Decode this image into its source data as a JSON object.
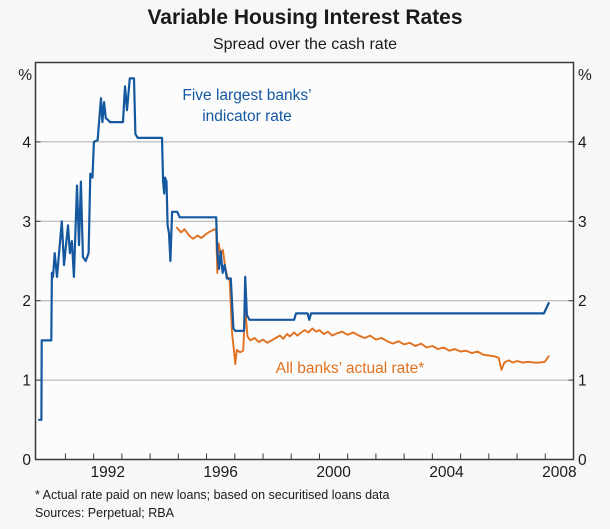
{
  "header": {
    "title": "Variable Housing Interest Rates",
    "subtitle": "Spread over the cash rate"
  },
  "footnotes": {
    "asterisk": "* Actual rate paid on new loans; based on securitised loans data",
    "sources": "Sources: Perpetual; RBA"
  },
  "annotations": {
    "blue_label_line1": "Five largest banks’",
    "blue_label_line2": "indicator rate",
    "orange_label": "All banks’ actual rate*"
  },
  "chart_data": {
    "type": "line",
    "title": "Variable Housing Interest Rates",
    "subtitle": "Spread over the cash rate",
    "grid": "horizontal-on",
    "legend_position": "inline-annotations",
    "x_axis": {
      "range": [
        1989.94,
        2009.0
      ],
      "tick_start_year": 1991,
      "tick_end_year": 2008,
      "tick_interval": 1,
      "labels": [
        {
          "year": 1992.5,
          "text": "1992"
        },
        {
          "year": 1996.5,
          "text": "1996"
        },
        {
          "year": 2000.5,
          "text": "2000"
        },
        {
          "year": 2004.5,
          "text": "2004"
        },
        {
          "year": 2008.5,
          "text": "2008"
        }
      ]
    },
    "y_axis": {
      "range": [
        0,
        5
      ],
      "unit": "%",
      "gridline_values": [
        1,
        2,
        3,
        4
      ],
      "tick_label_values": [
        0,
        1,
        2,
        3,
        4
      ]
    },
    "colors": {
      "blue": "#1558a0",
      "orange": "#e0711f",
      "frame": "#3a3a3a",
      "gridline": "#ababab",
      "plot_background": "#fcfcfc"
    },
    "series": [
      {
        "name": "All banks’ actual rate*",
        "color": "#e0711f",
        "points": [
          [
            1994.95,
            2.92
          ],
          [
            1995.1,
            2.86
          ],
          [
            1995.22,
            2.9
          ],
          [
            1995.38,
            2.82
          ],
          [
            1995.52,
            2.78
          ],
          [
            1995.68,
            2.82
          ],
          [
            1995.82,
            2.79
          ],
          [
            1995.98,
            2.84
          ],
          [
            1996.12,
            2.87
          ],
          [
            1996.28,
            2.9
          ],
          [
            1996.34,
            2.88
          ],
          [
            1996.38,
            2.35
          ],
          [
            1996.43,
            2.72
          ],
          [
            1996.5,
            2.58
          ],
          [
            1996.58,
            2.64
          ],
          [
            1996.66,
            2.42
          ],
          [
            1996.74,
            2.3
          ],
          [
            1996.82,
            2.25
          ],
          [
            1996.9,
            1.6
          ],
          [
            1996.97,
            1.38
          ],
          [
            1997.02,
            1.2
          ],
          [
            1997.07,
            1.38
          ],
          [
            1997.18,
            1.35
          ],
          [
            1997.3,
            1.37
          ],
          [
            1997.37,
            1.9
          ],
          [
            1997.45,
            1.55
          ],
          [
            1997.55,
            1.5
          ],
          [
            1997.7,
            1.53
          ],
          [
            1997.85,
            1.48
          ],
          [
            1998.0,
            1.51
          ],
          [
            1998.15,
            1.47
          ],
          [
            1998.3,
            1.5
          ],
          [
            1998.45,
            1.53
          ],
          [
            1998.6,
            1.56
          ],
          [
            1998.72,
            1.52
          ],
          [
            1998.85,
            1.58
          ],
          [
            1998.95,
            1.55
          ],
          [
            1999.1,
            1.6
          ],
          [
            1999.22,
            1.56
          ],
          [
            1999.35,
            1.6
          ],
          [
            1999.48,
            1.63
          ],
          [
            1999.6,
            1.6
          ],
          [
            1999.75,
            1.65
          ],
          [
            1999.88,
            1.61
          ],
          [
            2000.0,
            1.63
          ],
          [
            2000.15,
            1.58
          ],
          [
            2000.3,
            1.61
          ],
          [
            2000.45,
            1.56
          ],
          [
            2000.62,
            1.59
          ],
          [
            2000.8,
            1.61
          ],
          [
            2001.0,
            1.57
          ],
          [
            2001.2,
            1.6
          ],
          [
            2001.4,
            1.56
          ],
          [
            2001.6,
            1.53
          ],
          [
            2001.8,
            1.56
          ],
          [
            2002.0,
            1.51
          ],
          [
            2002.2,
            1.53
          ],
          [
            2002.4,
            1.49
          ],
          [
            2002.6,
            1.46
          ],
          [
            2002.8,
            1.49
          ],
          [
            2003.0,
            1.45
          ],
          [
            2003.2,
            1.47
          ],
          [
            2003.4,
            1.43
          ],
          [
            2003.6,
            1.46
          ],
          [
            2003.8,
            1.41
          ],
          [
            2004.0,
            1.43
          ],
          [
            2004.2,
            1.39
          ],
          [
            2004.4,
            1.41
          ],
          [
            2004.6,
            1.37
          ],
          [
            2004.8,
            1.39
          ],
          [
            2005.0,
            1.36
          ],
          [
            2005.2,
            1.37
          ],
          [
            2005.4,
            1.34
          ],
          [
            2005.6,
            1.36
          ],
          [
            2005.8,
            1.32
          ],
          [
            2006.0,
            1.31
          ],
          [
            2006.2,
            1.3
          ],
          [
            2006.35,
            1.28
          ],
          [
            2006.45,
            1.13
          ],
          [
            2006.55,
            1.22
          ],
          [
            2006.7,
            1.25
          ],
          [
            2006.85,
            1.22
          ],
          [
            2007.0,
            1.24
          ],
          [
            2007.2,
            1.22
          ],
          [
            2007.4,
            1.23
          ],
          [
            2007.6,
            1.22
          ],
          [
            2007.8,
            1.22
          ],
          [
            2007.98,
            1.23
          ],
          [
            2008.12,
            1.3
          ]
        ]
      },
      {
        "name": "Five largest banks’ indicator rate",
        "color": "#1558a0",
        "points": [
          [
            1990.07,
            0.5
          ],
          [
            1990.15,
            0.5
          ],
          [
            1990.16,
            1.5
          ],
          [
            1990.5,
            1.5
          ],
          [
            1990.52,
            2.35
          ],
          [
            1990.56,
            2.3
          ],
          [
            1990.62,
            2.6
          ],
          [
            1990.7,
            2.3
          ],
          [
            1990.87,
            3.0
          ],
          [
            1990.95,
            2.45
          ],
          [
            1991.09,
            2.95
          ],
          [
            1991.16,
            2.6
          ],
          [
            1991.23,
            2.75
          ],
          [
            1991.3,
            2.3
          ],
          [
            1991.41,
            3.45
          ],
          [
            1991.48,
            2.7
          ],
          [
            1991.55,
            3.5
          ],
          [
            1991.62,
            2.55
          ],
          [
            1991.72,
            2.5
          ],
          [
            1991.82,
            2.6
          ],
          [
            1991.88,
            3.6
          ],
          [
            1991.96,
            3.55
          ],
          [
            1992.01,
            4.0
          ],
          [
            1992.14,
            4.02
          ],
          [
            1992.26,
            4.55
          ],
          [
            1992.31,
            4.25
          ],
          [
            1992.37,
            4.5
          ],
          [
            1992.43,
            4.3
          ],
          [
            1992.5,
            4.28
          ],
          [
            1992.58,
            4.25
          ],
          [
            1993.04,
            4.25
          ],
          [
            1993.11,
            4.7
          ],
          [
            1993.18,
            4.4
          ],
          [
            1993.28,
            4.8
          ],
          [
            1993.43,
            4.8
          ],
          [
            1993.48,
            4.1
          ],
          [
            1993.56,
            4.05
          ],
          [
            1994.42,
            4.05
          ],
          [
            1994.46,
            3.5
          ],
          [
            1994.5,
            3.35
          ],
          [
            1994.53,
            3.55
          ],
          [
            1994.58,
            3.5
          ],
          [
            1994.62,
            2.95
          ],
          [
            1994.67,
            2.85
          ],
          [
            1994.72,
            2.5
          ],
          [
            1994.78,
            3.12
          ],
          [
            1994.96,
            3.12
          ],
          [
            1995.05,
            3.05
          ],
          [
            1996.34,
            3.05
          ],
          [
            1996.38,
            2.62
          ],
          [
            1996.44,
            2.4
          ],
          [
            1996.5,
            2.62
          ],
          [
            1996.57,
            2.35
          ],
          [
            1996.64,
            2.45
          ],
          [
            1996.72,
            2.28
          ],
          [
            1996.86,
            2.28
          ],
          [
            1996.95,
            1.65
          ],
          [
            1997.02,
            1.62
          ],
          [
            1997.33,
            1.62
          ],
          [
            1997.37,
            2.3
          ],
          [
            1997.43,
            1.82
          ],
          [
            1997.52,
            1.76
          ],
          [
            1999.1,
            1.76
          ],
          [
            1999.17,
            1.84
          ],
          [
            1999.58,
            1.84
          ],
          [
            1999.64,
            1.76
          ],
          [
            1999.7,
            1.84
          ],
          [
            2000.0,
            1.84
          ],
          [
            2007.95,
            1.84
          ],
          [
            2008.12,
            1.97
          ]
        ]
      }
    ]
  }
}
